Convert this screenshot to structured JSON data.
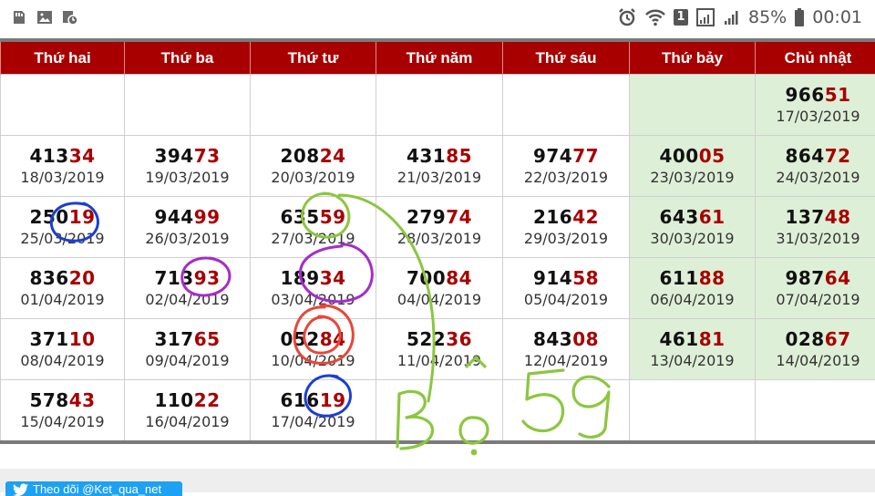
{
  "statusbar": {
    "icons_left": [
      "storage-icon",
      "image-icon",
      "alarm-sync-icon"
    ],
    "sim_badge": "1",
    "battery": "85%",
    "time": "00:01"
  },
  "calendar": {
    "days": [
      "Thứ hai",
      "Thứ ba",
      "Thứ tư",
      "Thứ năm",
      "Thứ sáu",
      "Thứ bảy",
      "Chủ nhật"
    ],
    "weeks": [
      [
        {
          "p": "",
          "s": "",
          "d": ""
        },
        {
          "p": "",
          "s": "",
          "d": ""
        },
        {
          "p": "",
          "s": "",
          "d": ""
        },
        {
          "p": "",
          "s": "",
          "d": ""
        },
        {
          "p": "",
          "s": "",
          "d": ""
        },
        {
          "p": "",
          "s": "",
          "d": ""
        },
        {
          "p": "966",
          "s": "51",
          "d": "17/03/2019"
        }
      ],
      [
        {
          "p": "413",
          "s": "34",
          "d": "18/03/2019"
        },
        {
          "p": "394",
          "s": "73",
          "d": "19/03/2019"
        },
        {
          "p": "208",
          "s": "24",
          "d": "20/03/2019"
        },
        {
          "p": "431",
          "s": "85",
          "d": "21/03/2019"
        },
        {
          "p": "974",
          "s": "77",
          "d": "22/03/2019"
        },
        {
          "p": "400",
          "s": "05",
          "d": "23/03/2019"
        },
        {
          "p": "864",
          "s": "72",
          "d": "24/03/2019"
        }
      ],
      [
        {
          "p": "250",
          "s": "19",
          "d": "25/03/2019"
        },
        {
          "p": "944",
          "s": "99",
          "d": "26/03/2019"
        },
        {
          "p": "635",
          "s": "59",
          "d": "27/03/2019"
        },
        {
          "p": "279",
          "s": "74",
          "d": "28/03/2019"
        },
        {
          "p": "216",
          "s": "42",
          "d": "29/03/2019"
        },
        {
          "p": "643",
          "s": "61",
          "d": "30/03/2019"
        },
        {
          "p": "137",
          "s": "48",
          "d": "31/03/2019"
        }
      ],
      [
        {
          "p": "836",
          "s": "20",
          "d": "01/04/2019"
        },
        {
          "p": "713",
          "s": "93",
          "d": "02/04/2019"
        },
        {
          "p": "189",
          "s": "34",
          "d": "03/04/2019"
        },
        {
          "p": "700",
          "s": "84",
          "d": "04/04/2019"
        },
        {
          "p": "914",
          "s": "58",
          "d": "05/04/2019"
        },
        {
          "p": "611",
          "s": "88",
          "d": "06/04/2019"
        },
        {
          "p": "987",
          "s": "64",
          "d": "07/04/2019"
        }
      ],
      [
        {
          "p": "371",
          "s": "10",
          "d": "08/04/2019"
        },
        {
          "p": "317",
          "s": "65",
          "d": "09/04/2019"
        },
        {
          "p": "052",
          "s": "84",
          "d": "10/04/2019"
        },
        {
          "p": "522",
          "s": "36",
          "d": "11/04/2019"
        },
        {
          "p": "843",
          "s": "08",
          "d": "12/04/2019"
        },
        {
          "p": "461",
          "s": "81",
          "d": "13/04/2019"
        },
        {
          "p": "028",
          "s": "67",
          "d": "14/04/2019"
        }
      ],
      [
        {
          "p": "578",
          "s": "43",
          "d": "15/04/2019"
        },
        {
          "p": "110",
          "s": "22",
          "d": "16/04/2019"
        },
        {
          "p": "616",
          "s": "19",
          "d": "17/04/2019"
        },
        {
          "p": "",
          "s": "",
          "d": ""
        },
        {
          "p": "",
          "s": "",
          "d": ""
        },
        {
          "p": "",
          "s": "",
          "d": ""
        },
        {
          "p": "",
          "s": "",
          "d": ""
        }
      ]
    ]
  },
  "annotations": {
    "handwriting": "Bộ 59",
    "colors": {
      "blue": "#1c3fd0",
      "purple": "#a52cc9",
      "green": "#8cc63f",
      "red": "#e8463a"
    }
  },
  "footer": {
    "follow_label": "Theo dõi @Ket_qua_net"
  },
  "colors": {
    "header_bg": "#a80000",
    "weekend_bg": "#deefd7",
    "suffix_red": "#a80000"
  }
}
